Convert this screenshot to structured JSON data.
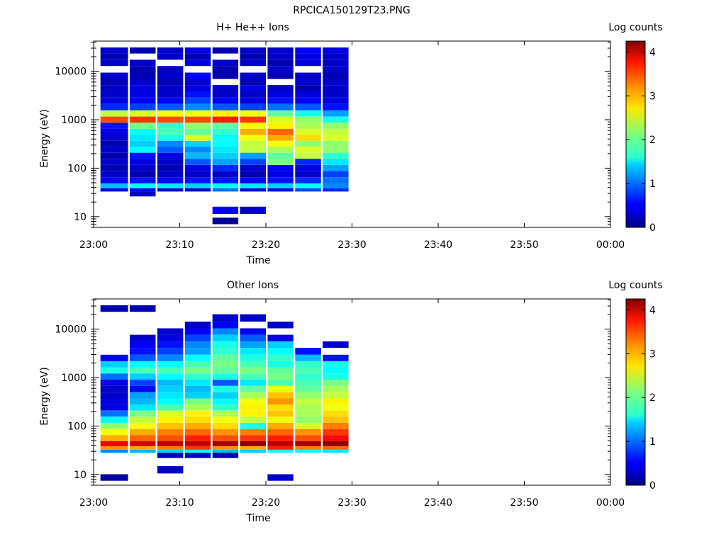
{
  "page_title": "RPCICA150129T23.PNG",
  "chart_data": [
    {
      "type": "heatmap",
      "title": "H+ He++ Ions",
      "xlabel": "Time",
      "ylabel": "Energy (eV)",
      "x_ticks": [
        "23:00",
        "23:10",
        "23:20",
        "23:30",
        "23:40",
        "23:50",
        "00:00"
      ],
      "x_range_minutes": [
        0,
        60
      ],
      "y_scale": "log",
      "y_ticks": [
        "10",
        "100",
        "1000",
        "10000"
      ],
      "y_range": [
        6,
        42000
      ],
      "colorbar": {
        "label": "Log counts",
        "range": [
          0,
          4.25
        ],
        "ticks": [
          "0",
          "1",
          "2",
          "3",
          "4"
        ],
        "colormap": "jet"
      },
      "time_bins_minutes": [
        [
          0.8,
          4.0
        ],
        [
          4.2,
          7.2
        ],
        [
          7.4,
          10.4
        ],
        [
          10.6,
          13.6
        ],
        [
          13.8,
          16.8
        ],
        [
          17.0,
          20.0
        ],
        [
          20.2,
          23.2
        ],
        [
          23.4,
          26.4
        ],
        [
          26.6,
          29.6
        ]
      ],
      "energy_bins": [
        {
          "e": 27000,
          "v": [
            0.3,
            0.2,
            0.3,
            0.4,
            0.2,
            0.3,
            0.3,
            0.5,
            0.4
          ]
        },
        {
          "e": 20000,
          "v": [
            0.2,
            null,
            0.3,
            0.2,
            null,
            0.2,
            0.3,
            0.4,
            0.3
          ]
        },
        {
          "e": 15000,
          "v": [
            0.3,
            0.3,
            null,
            0.4,
            0.3,
            0.3,
            0.2,
            0.4,
            0.3
          ]
        },
        {
          "e": 11000,
          "v": [
            null,
            0.2,
            0.3,
            null,
            0.2,
            null,
            0.3,
            null,
            0.3
          ]
        },
        {
          "e": 8000,
          "v": [
            0.3,
            0.2,
            0.3,
            0.5,
            0.2,
            0.3,
            0.2,
            0.3,
            0.2
          ]
        },
        {
          "e": 6000,
          "v": [
            0.2,
            0.3,
            0.2,
            0.3,
            null,
            0.2,
            null,
            0.3,
            0.3
          ]
        },
        {
          "e": 4500,
          "v": [
            0.3,
            0.4,
            0.3,
            0.4,
            0.3,
            0.4,
            0.3,
            0.2,
            0.3
          ]
        },
        {
          "e": 3300,
          "v": [
            0.3,
            0.4,
            0.3,
            0.6,
            0.3,
            0.3,
            0.4,
            0.4,
            0.3
          ]
        },
        {
          "e": 2500,
          "v": [
            0.4,
            0.5,
            0.5,
            0.8,
            0.5,
            0.4,
            0.6,
            0.5,
            0.4
          ]
        },
        {
          "e": 1800,
          "v": [
            0.7,
            0.8,
            0.9,
            1.1,
            0.9,
            0.8,
            1.0,
            0.9,
            0.6
          ]
        },
        {
          "e": 1350,
          "v": [
            2.4,
            2.5,
            2.6,
            2.6,
            2.7,
            2.6,
            2.0,
            1.7,
            1.2
          ]
        },
        {
          "e": 1000,
          "v": [
            3.4,
            3.5,
            3.4,
            3.4,
            3.6,
            3.5,
            2.5,
            2.2,
            1.7
          ]
        },
        {
          "e": 750,
          "v": [
            0.6,
            2.1,
            1.8,
            2.2,
            2.0,
            2.6,
            2.7,
            2.3,
            2.2
          ]
        },
        {
          "e": 560,
          "v": [
            0.4,
            1.6,
            1.9,
            2.0,
            1.8,
            3.0,
            3.3,
            2.5,
            2.4
          ]
        },
        {
          "e": 420,
          "v": [
            0.3,
            1.5,
            1.7,
            2.5,
            1.6,
            2.6,
            3.0,
            2.8,
            2.5
          ]
        },
        {
          "e": 320,
          "v": [
            0.2,
            1.4,
            1.1,
            1.4,
            1.6,
            2.4,
            2.6,
            2.2,
            2.2
          ]
        },
        {
          "e": 240,
          "v": [
            0.3,
            1.6,
            0.9,
            1.1,
            1.5,
            2.4,
            2.3,
            2.5,
            2.2
          ]
        },
        {
          "e": 180,
          "v": [
            0.2,
            0.6,
            0.4,
            1.3,
            1.4,
            1.2,
            2.0,
            2.4,
            1.8
          ]
        },
        {
          "e": 135,
          "v": [
            0.3,
            0.4,
            0.3,
            0.9,
            1.2,
            0.8,
            2.1,
            0.7,
            1.5
          ]
        },
        {
          "e": 100,
          "v": [
            0.2,
            0.3,
            0.2,
            0.4,
            0.7,
            0.3,
            0.5,
            0.4,
            1.2
          ]
        },
        {
          "e": 75,
          "v": [
            0.3,
            0.2,
            0.3,
            0.3,
            0.3,
            0.2,
            0.4,
            0.3,
            0.8
          ]
        },
        {
          "e": 56,
          "v": [
            0.5,
            0.6,
            0.5,
            0.6,
            0.6,
            0.5,
            0.6,
            0.7,
            1.0
          ]
        },
        {
          "e": 42,
          "v": [
            1.3,
            1.6,
            1.5,
            1.4,
            1.6,
            1.5,
            1.4,
            1.6,
            1.1
          ]
        },
        {
          "e": 35,
          "v": [
            0.4,
            0.5,
            0.3,
            0.3,
            1.0,
            0.4,
            0.5,
            0.8,
            0.7
          ]
        },
        {
          "e": 31,
          "v": [
            null,
            0.3,
            null,
            null,
            null,
            null,
            null,
            null,
            null
          ]
        },
        {
          "e": 13.5,
          "v": [
            null,
            null,
            null,
            null,
            0.5,
            0.3,
            null,
            null,
            null
          ]
        },
        {
          "e": 8,
          "v": [
            null,
            null,
            null,
            null,
            0.1,
            null,
            null,
            null,
            null
          ]
        }
      ]
    },
    {
      "type": "heatmap",
      "title": "Other Ions",
      "xlabel": "Time",
      "ylabel": "Energy (eV)",
      "x_ticks": [
        "23:00",
        "23:10",
        "23:20",
        "23:30",
        "23:40",
        "23:50",
        "00:00"
      ],
      "x_range_minutes": [
        0,
        60
      ],
      "y_scale": "log",
      "y_ticks": [
        "10",
        "100",
        "1000",
        "10000"
      ],
      "y_range": [
        6,
        42000
      ],
      "colorbar": {
        "label": "Log counts",
        "range": [
          0,
          4.25
        ],
        "ticks": [
          "0",
          "1",
          "2",
          "3",
          "4"
        ],
        "colormap": "jet"
      },
      "time_bins_minutes": [
        [
          0.8,
          4.0
        ],
        [
          4.2,
          7.2
        ],
        [
          7.4,
          10.4
        ],
        [
          10.6,
          13.6
        ],
        [
          13.8,
          16.8
        ],
        [
          17.0,
          20.0
        ],
        [
          20.2,
          23.2
        ],
        [
          23.4,
          26.4
        ],
        [
          26.6,
          29.6
        ]
      ],
      "energy_bins": [
        {
          "e": 27000,
          "v": [
            0.2,
            0.2,
            null,
            null,
            null,
            null,
            null,
            null,
            null
          ]
        },
        {
          "e": 17000,
          "v": [
            null,
            null,
            null,
            null,
            0.3,
            0.3,
            null,
            null,
            null
          ]
        },
        {
          "e": 12000,
          "v": [
            null,
            null,
            null,
            0.3,
            0.5,
            null,
            0.3,
            null,
            null
          ]
        },
        {
          "e": 9000,
          "v": [
            null,
            null,
            0.3,
            0.5,
            1.1,
            0.5,
            null,
            null,
            null
          ]
        },
        {
          "e": 6500,
          "v": [
            null,
            0.3,
            0.4,
            0.8,
            1.4,
            0.9,
            0.4,
            null,
            null
          ]
        },
        {
          "e": 4800,
          "v": [
            null,
            0.5,
            0.6,
            1.1,
            1.7,
            1.2,
            1.4,
            null,
            0.3
          ]
        },
        {
          "e": 3500,
          "v": [
            null,
            0.6,
            0.8,
            1.2,
            1.8,
            1.5,
            1.6,
            0.6,
            null
          ]
        },
        {
          "e": 2500,
          "v": [
            0.5,
            0.9,
            1.1,
            1.6,
            2.0,
            1.7,
            1.8,
            1.3,
            0.6
          ]
        },
        {
          "e": 1900,
          "v": [
            1.4,
            1.6,
            1.6,
            1.9,
            2.1,
            1.9,
            1.7,
            1.8,
            1.7
          ]
        },
        {
          "e": 1400,
          "v": [
            1.7,
            1.9,
            1.9,
            2.1,
            2.0,
            2.1,
            2.0,
            1.9,
            1.6
          ]
        },
        {
          "e": 1050,
          "v": [
            1.0,
            1.4,
            1.6,
            1.8,
            1.7,
            1.9,
            2.1,
            1.8,
            1.7
          ]
        },
        {
          "e": 780,
          "v": [
            0.4,
            0.8,
            1.3,
            1.5,
            0.9,
            1.5,
            1.9,
            1.9,
            2.1
          ]
        },
        {
          "e": 580,
          "v": [
            0.3,
            0.5,
            1.4,
            1.3,
            1.7,
            2.0,
            2.6,
            2.0,
            2.3
          ]
        },
        {
          "e": 430,
          "v": [
            0.3,
            1.2,
            1.5,
            1.4,
            1.4,
            2.3,
            2.9,
            2.2,
            2.4
          ]
        },
        {
          "e": 320,
          "v": [
            0.4,
            1.3,
            1.6,
            2.1,
            1.6,
            2.6,
            3.1,
            2.4,
            2.7
          ]
        },
        {
          "e": 240,
          "v": [
            0.4,
            1.5,
            1.9,
            2.3,
            1.8,
            2.7,
            2.8,
            2.3,
            2.6
          ]
        },
        {
          "e": 180,
          "v": [
            1.0,
            2.1,
            2.5,
            2.7,
            2.3,
            2.7,
            2.9,
            2.3,
            2.8
          ]
        },
        {
          "e": 135,
          "v": [
            1.6,
            2.4,
            2.7,
            2.8,
            2.6,
            2.4,
            2.6,
            2.2,
            2.9
          ]
        },
        {
          "e": 100,
          "v": [
            2.2,
            2.6,
            2.9,
            3.0,
            2.8,
            1.7,
            3.0,
            2.5,
            3.2
          ]
        },
        {
          "e": 75,
          "v": [
            2.6,
            3.0,
            3.2,
            3.3,
            3.1,
            3.2,
            3.3,
            3.1,
            3.5
          ]
        },
        {
          "e": 56,
          "v": [
            3.0,
            3.3,
            3.4,
            3.6,
            3.4,
            3.5,
            3.6,
            3.4,
            3.7
          ]
        },
        {
          "e": 42,
          "v": [
            3.8,
            3.9,
            4.0,
            4.0,
            4.1,
            4.2,
            4.0,
            4.1,
            4.2
          ]
        },
        {
          "e": 35,
          "v": [
            3.1,
            3.0,
            3.2,
            3.5,
            3.1,
            3.0,
            3.6,
            3.2,
            3.3
          ]
        },
        {
          "e": 30,
          "v": [
            1.1,
            1.3,
            1.4,
            1.6,
            1.3,
            1.4,
            1.7,
            1.6,
            1.5
          ]
        },
        {
          "e": 26,
          "v": [
            null,
            null,
            0.2,
            0.3,
            0.2,
            null,
            null,
            null,
            null
          ]
        },
        {
          "e": 12.5,
          "v": [
            null,
            null,
            0.3,
            null,
            null,
            null,
            null,
            null,
            null
          ]
        },
        {
          "e": 8.5,
          "v": [
            0.15,
            null,
            null,
            null,
            null,
            null,
            0.3,
            null,
            null
          ]
        }
      ]
    }
  ]
}
